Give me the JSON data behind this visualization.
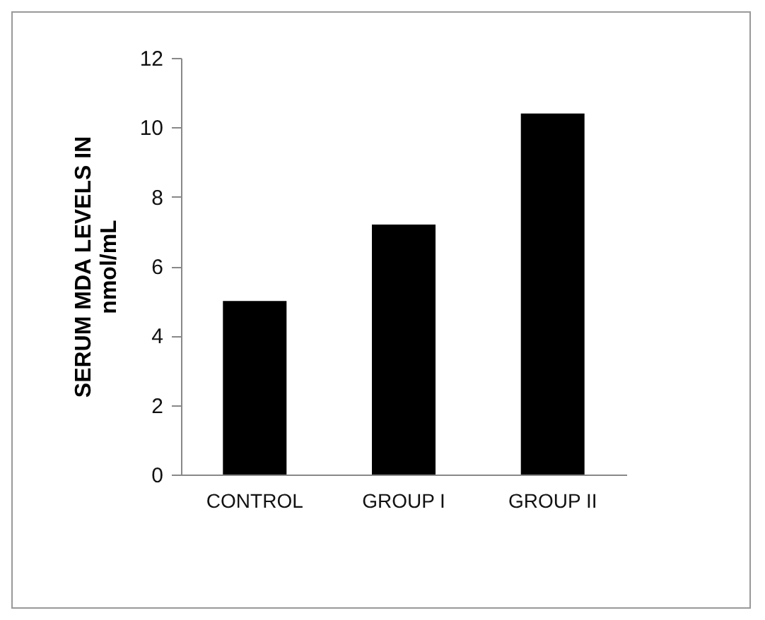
{
  "chart_data": {
    "type": "bar",
    "ylabel": "SERUM MDA LEVELS IN\nnmol/mL",
    "categories": [
      "CONTROL",
      "GROUP I",
      "GROUP II"
    ],
    "values": [
      5.0,
      7.2,
      10.4
    ],
    "color": "#000000",
    "ylim": [
      0,
      12
    ],
    "yticks": [
      0,
      2,
      4,
      6,
      8,
      10,
      12
    ],
    "grid": false,
    "legend": false
  }
}
